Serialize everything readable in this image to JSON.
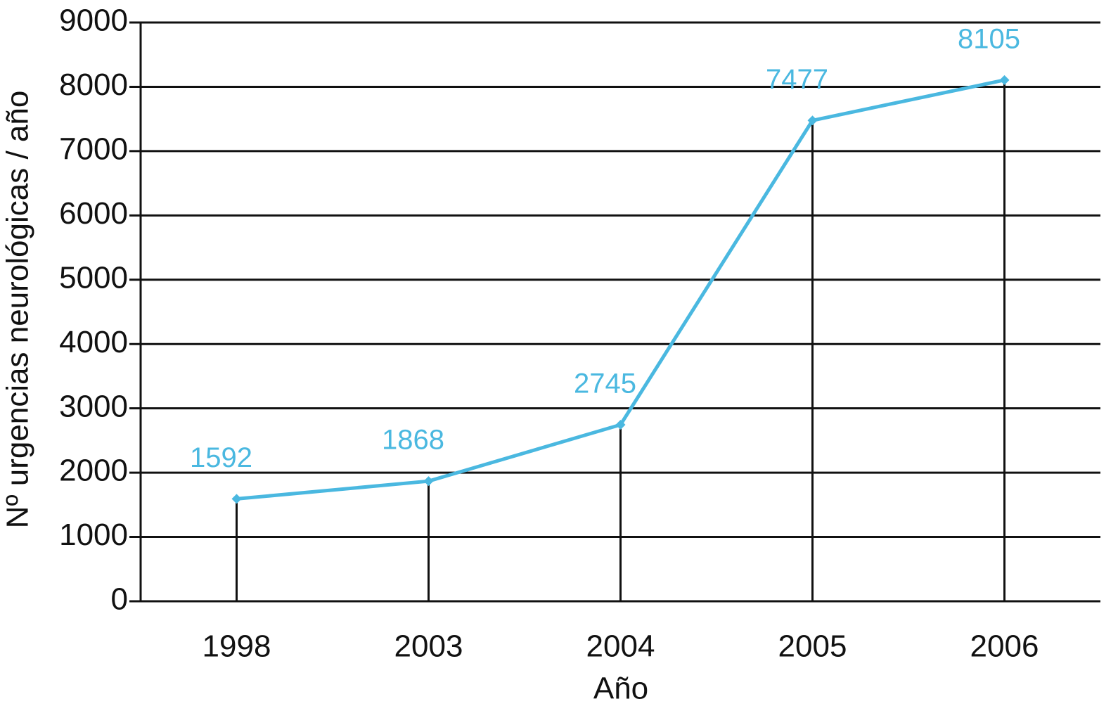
{
  "chart_data": {
    "type": "line",
    "categories": [
      "1998",
      "2003",
      "2004",
      "2005",
      "2006"
    ],
    "series": [
      {
        "color": "#4ab8e0",
        "values": [
          1592,
          1868,
          2745,
          7477,
          8105
        ]
      }
    ],
    "ylim": [
      0,
      9000
    ],
    "yticks": [
      0,
      1000,
      2000,
      3000,
      4000,
      5000,
      6000,
      7000,
      8000,
      9000
    ],
    "grid": true,
    "data_labels": true,
    "xlabel": "Año",
    "ylabel": "Nº urgencias neurológicas / año"
  }
}
